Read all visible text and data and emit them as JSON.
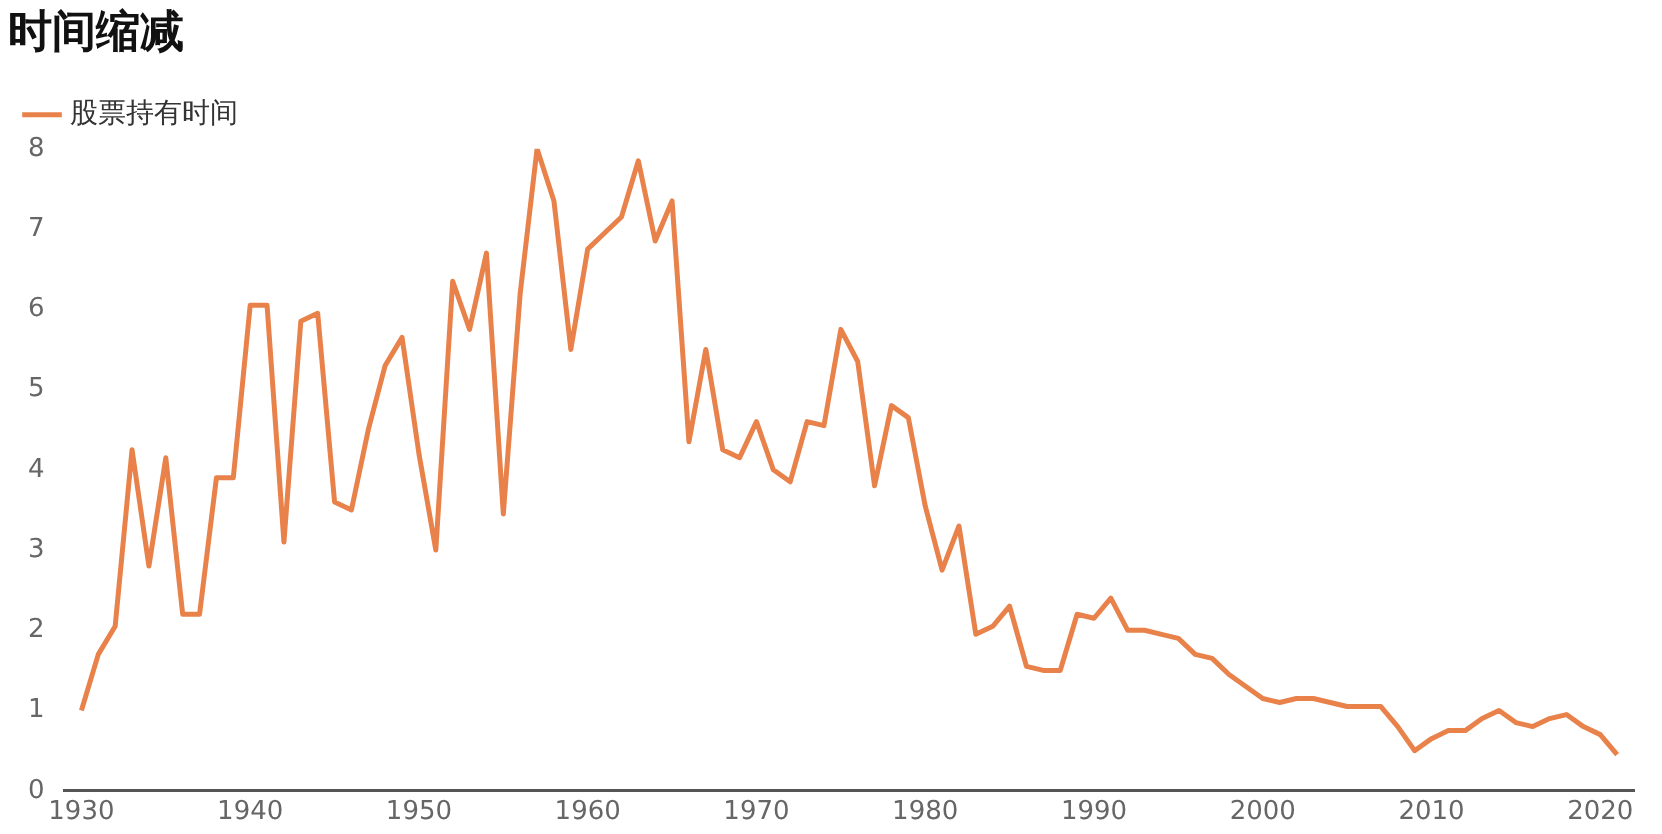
{
  "chart_data": {
    "type": "line",
    "title": "时间缩减",
    "x": [
      1930,
      1931,
      1932,
      1933,
      1934,
      1935,
      1936,
      1937,
      1938,
      1939,
      1940,
      1941,
      1942,
      1943,
      1944,
      1945,
      1946,
      1947,
      1948,
      1949,
      1950,
      1951,
      1952,
      1953,
      1954,
      1955,
      1956,
      1957,
      1958,
      1959,
      1960,
      1961,
      1962,
      1963,
      1964,
      1965,
      1966,
      1967,
      1968,
      1969,
      1970,
      1971,
      1972,
      1973,
      1974,
      1975,
      1976,
      1977,
      1978,
      1979,
      1980,
      1981,
      1982,
      1983,
      1984,
      1985,
      1986,
      1987,
      1988,
      1989,
      1990,
      1991,
      1992,
      1993,
      1994,
      1995,
      1996,
      1997,
      1998,
      1999,
      2000,
      2001,
      2002,
      2003,
      2004,
      2005,
      2006,
      2007,
      2008,
      2009,
      2010,
      2011,
      2012,
      2013,
      2014,
      2015,
      2016,
      2017,
      2018,
      2019,
      2020,
      2021
    ],
    "series": [
      {
        "name": "股票持有时间",
        "color": "#e8824a",
        "values": [
          1.0,
          1.7,
          2.05,
          4.25,
          2.8,
          4.15,
          2.2,
          2.2,
          3.9,
          3.9,
          6.05,
          6.05,
          3.1,
          5.85,
          5.95,
          3.6,
          3.5,
          4.5,
          5.3,
          5.65,
          4.2,
          3.0,
          6.35,
          5.75,
          6.7,
          3.45,
          6.2,
          8.0,
          7.35,
          5.5,
          6.75,
          6.95,
          7.15,
          7.85,
          6.85,
          7.35,
          4.35,
          5.5,
          4.25,
          4.15,
          4.6,
          4.0,
          3.85,
          4.6,
          4.55,
          5.75,
          5.35,
          3.8,
          4.8,
          4.65,
          3.55,
          2.75,
          3.3,
          1.95,
          2.05,
          2.3,
          1.55,
          1.5,
          1.5,
          2.2,
          2.15,
          2.4,
          2.0,
          2.0,
          1.95,
          1.9,
          1.7,
          1.65,
          1.45,
          1.3,
          1.15,
          1.1,
          1.15,
          1.15,
          1.1,
          1.05,
          1.05,
          1.05,
          0.8,
          0.5,
          0.65,
          0.75,
          0.75,
          0.9,
          1.0,
          0.85,
          0.8,
          0.9,
          0.95,
          0.8,
          0.7,
          0.45
        ]
      }
    ],
    "xlim": [
      1929,
      2022
    ],
    "xticks": [
      1930,
      1940,
      1950,
      1960,
      1970,
      1980,
      1990,
      2000,
      2010,
      2020
    ],
    "ylim": [
      0,
      8
    ],
    "yticks": [
      0,
      1,
      2,
      3,
      4,
      5,
      6,
      7,
      8
    ],
    "grid": false,
    "legend": "top left",
    "marker": "none",
    "line_style": "solid"
  }
}
